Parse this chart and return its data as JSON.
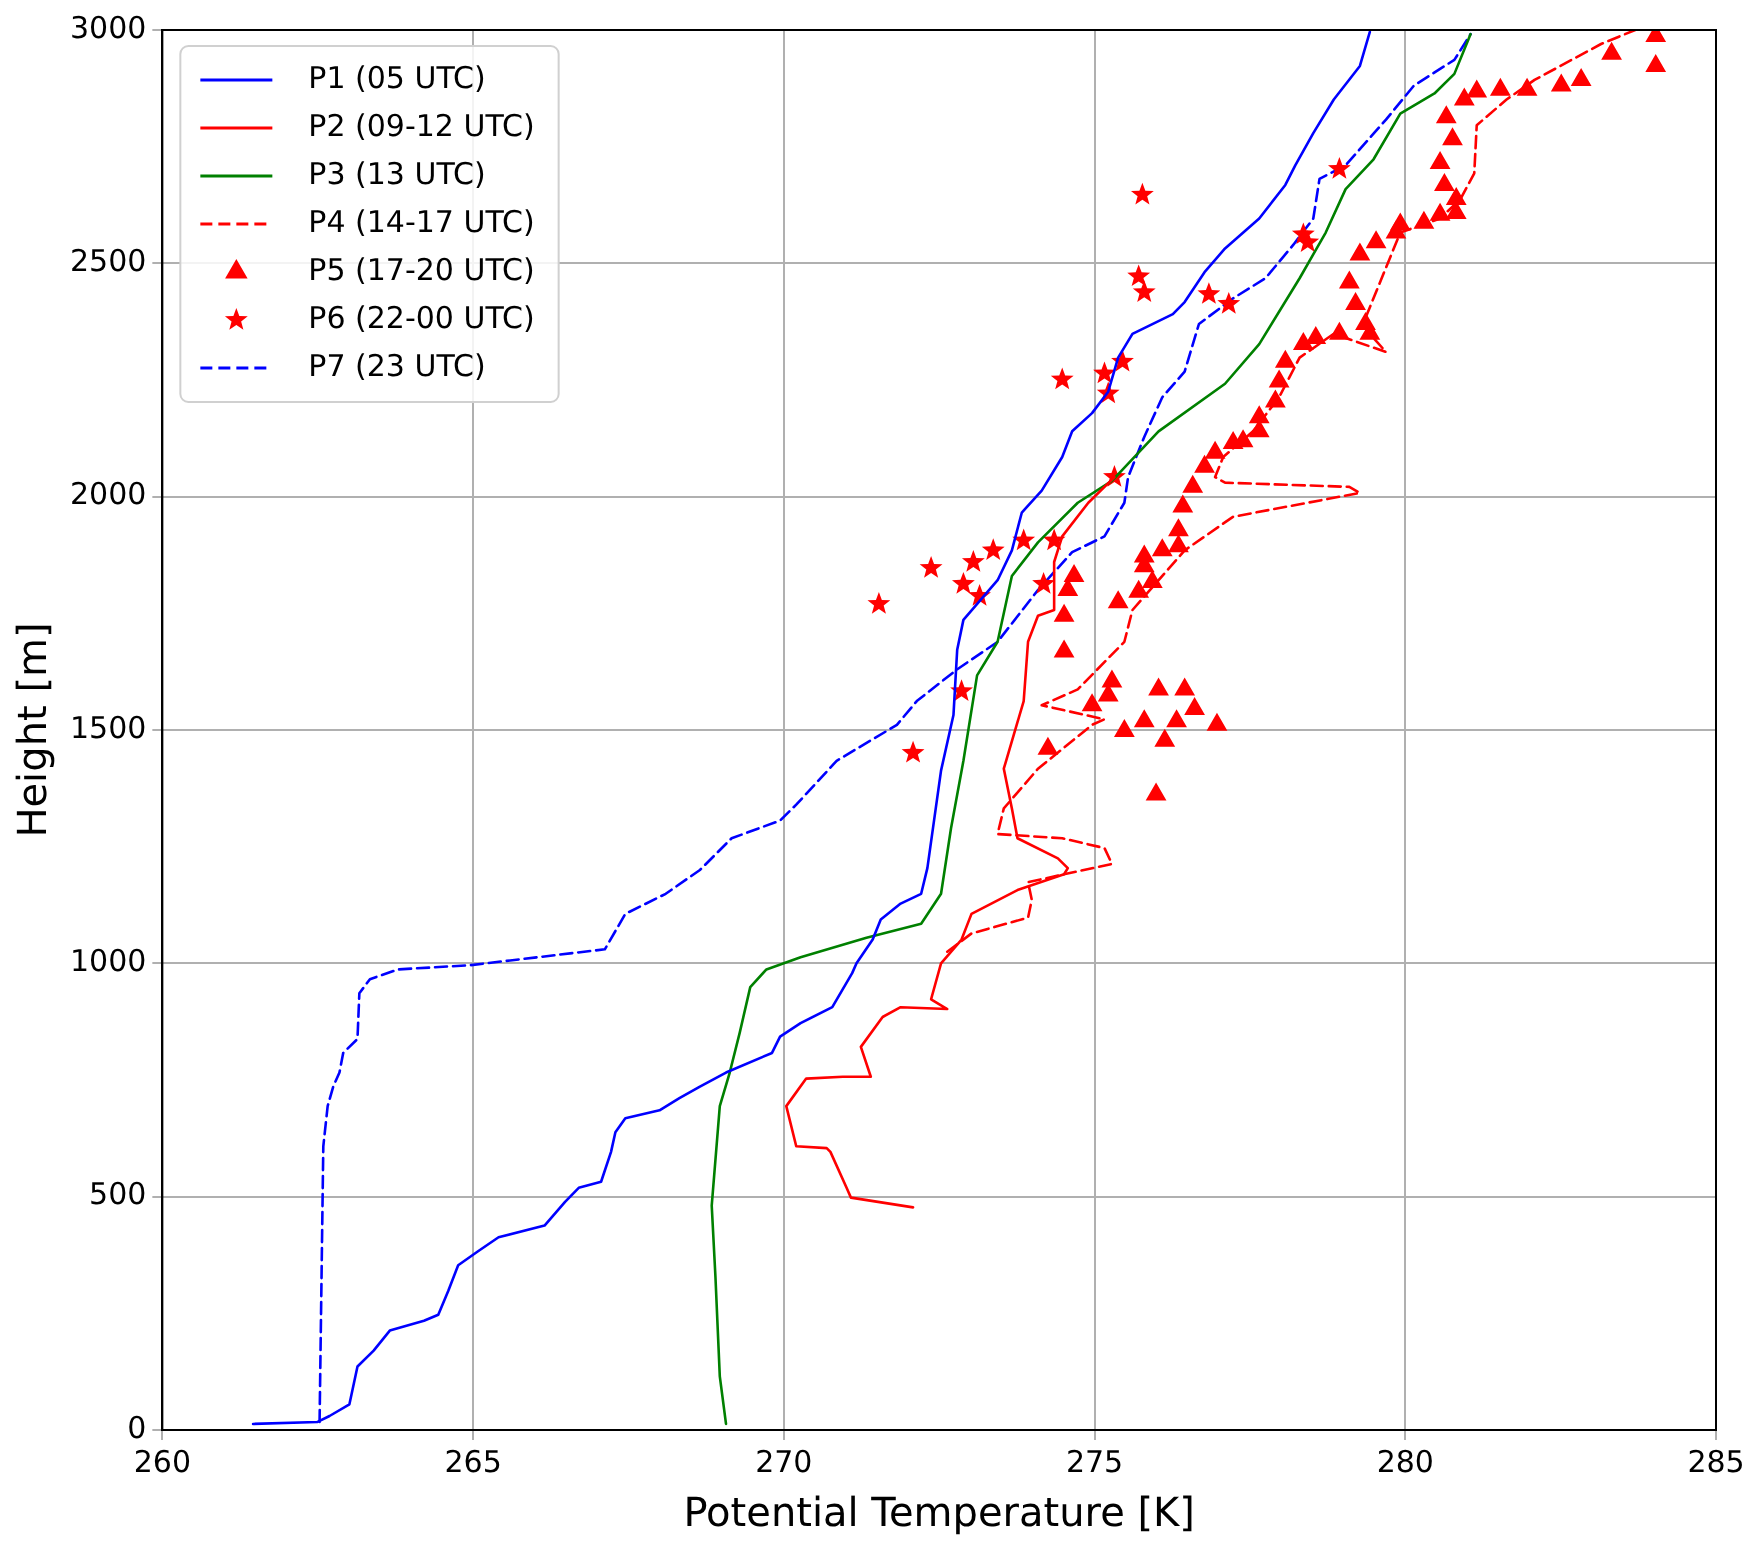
{
  "chart_data": {
    "type": "line",
    "xlabel": "Potential Temperature [K]",
    "ylabel": "Height [m]",
    "xlim": [
      260,
      285
    ],
    "xticks": [
      260,
      265,
      270,
      275,
      280,
      285
    ],
    "ylim": [
      0,
      3000
    ],
    "yticks": [
      0,
      500,
      1000,
      1500,
      2000,
      2500,
      3000
    ],
    "grid": true,
    "legend": "top left",
    "series": [
      {
        "name": "P1 (05 UTC)",
        "type": "line",
        "color": "#0000ff",
        "line_style": "solid",
        "marker": "none",
        "x": [
          261.46,
          262.49,
          262.69,
          263.01,
          263.14,
          263.4,
          263.66,
          264.21,
          264.44,
          264.6,
          264.76,
          265.08,
          265.41,
          266.15,
          266.48,
          266.7,
          267.06,
          267.22,
          267.29,
          267.45,
          268.0,
          268.32,
          268.65,
          269.07,
          269.81,
          269.94,
          270.27,
          270.78,
          271.1,
          271.17,
          271.43,
          271.56,
          271.88,
          272.21,
          272.31,
          272.53,
          272.73,
          272.79,
          272.89,
          273.44,
          273.67,
          273.83,
          274.15,
          274.48,
          274.64,
          274.96,
          275.22,
          275.38,
          275.61,
          276.26,
          276.45,
          276.77,
          277.1,
          277.65,
          278.07,
          278.23,
          278.52,
          278.85,
          279.27,
          279.43
        ],
        "values": [
          13,
          17,
          30,
          55,
          136,
          170,
          213,
          234,
          247,
          298,
          353,
          383,
          413,
          438,
          489,
          519,
          532,
          596,
          638,
          668,
          685,
          711,
          736,
          766,
          808,
          843,
          872,
          906,
          979,
          1000,
          1051,
          1094,
          1128,
          1149,
          1204,
          1413,
          1532,
          1672,
          1736,
          1821,
          1885,
          1966,
          2013,
          2085,
          2140,
          2179,
          2225,
          2298,
          2349,
          2391,
          2417,
          2481,
          2532,
          2596,
          2668,
          2710,
          2779,
          2851,
          2923,
          2996
        ]
      },
      {
        "name": "P2 (09-12 UTC)",
        "type": "line",
        "color": "#ff0000",
        "line_style": "solid",
        "marker": "none",
        "x": [
          272.08,
          271.08,
          271.01,
          270.75,
          270.69,
          270.2,
          270.04,
          270.36,
          270.95,
          271.4,
          271.24,
          271.59,
          271.88,
          272.63,
          272.37,
          272.53,
          272.86,
          273.02,
          273.76,
          274.51,
          274.57,
          274.41,
          273.76,
          273.67,
          273.54,
          273.86,
          273.93,
          274.09,
          274.35,
          274.35,
          274.48,
          274.9,
          275.32
        ],
        "values": [
          477,
          498,
          519,
          596,
          604,
          608,
          694,
          753,
          757,
          757,
          821,
          885,
          906,
          902,
          923,
          1000,
          1051,
          1106,
          1157,
          1191,
          1204,
          1225,
          1268,
          1332,
          1417,
          1562,
          1689,
          1745,
          1757,
          1860,
          1915,
          1987,
          2042
        ]
      },
      {
        "name": "P3 (13 UTC)",
        "type": "line",
        "color": "#008000",
        "line_style": "solid",
        "marker": "none",
        "x": [
          269.07,
          268.97,
          268.9,
          268.84,
          268.97,
          269.13,
          269.29,
          269.46,
          269.72,
          270.27,
          271.33,
          272.21,
          272.53,
          272.69,
          272.89,
          273.11,
          273.44,
          273.67,
          274.09,
          274.73,
          275.28,
          276.03,
          277.1,
          277.65,
          278.3,
          278.72,
          279.04,
          279.49,
          279.92,
          280.47,
          280.79,
          281.05
        ],
        "values": [
          13,
          115,
          328,
          481,
          694,
          766,
          851,
          949,
          987,
          1013,
          1055,
          1085,
          1149,
          1289,
          1434,
          1617,
          1689,
          1830,
          1902,
          1987,
          2034,
          2140,
          2242,
          2327,
          2468,
          2566,
          2659,
          2723,
          2821,
          2864,
          2906,
          2991
        ]
      },
      {
        "name": "P4 (14-17 UTC)",
        "type": "line",
        "color": "#ff0000",
        "line_style": "dashed",
        "marker": "none",
        "x": [
          272.63,
          273.02,
          273.93,
          273.99,
          273.93,
          275.28,
          275.16,
          274.48,
          273.44,
          273.54,
          274.09,
          274.96,
          275.16,
          274.15,
          274.73,
          275.48,
          275.61,
          276.45,
          277.23,
          279.27,
          279.1,
          277.1,
          276.94,
          277.07,
          277.55,
          277.97,
          278.3,
          278.85,
          279.69,
          279.49,
          279.36,
          279.92,
          280.56,
          280.89,
          281.11,
          281.15,
          281.63,
          282.08,
          283.15,
          283.7
        ],
        "values": [
          1025,
          1064,
          1098,
          1136,
          1174,
          1213,
          1247,
          1268,
          1277,
          1332,
          1417,
          1511,
          1523,
          1553,
          1587,
          1689,
          1757,
          1885,
          1957,
          2008,
          2021,
          2030,
          2042,
          2085,
          2140,
          2213,
          2298,
          2349,
          2310,
          2340,
          2383,
          2566,
          2596,
          2638,
          2693,
          2796,
          2851,
          2893,
          2970,
          3000
        ]
      },
      {
        "name": "P5 (17-20 UTC)",
        "type": "scatter",
        "color": "#ff0000",
        "marker": "triangle",
        "x": [
          284.03,
          284.03,
          283.32,
          282.83,
          282.51,
          281.96,
          281.53,
          281.15,
          280.95,
          280.66,
          280.76,
          280.56,
          280.63,
          280.82,
          280.82,
          280.56,
          280.3,
          279.92,
          279.85,
          279.53,
          279.27,
          279.1,
          279.2,
          279.36,
          279.43,
          278.94,
          278.56,
          278.36,
          278.07,
          277.97,
          277.91,
          277.65,
          277.65,
          277.39,
          277.23,
          276.94,
          276.77,
          276.58,
          276.42,
          276.35,
          276.35,
          276.09,
          275.8,
          275.8,
          275.93,
          275.71,
          275.38,
          274.67,
          274.57,
          274.51,
          274.51,
          275.28,
          275.22,
          274.96,
          276.03,
          276.45,
          276.61,
          275.8,
          275.48,
          276.13,
          276.32,
          276.97,
          274.25,
          275.99
        ],
        "values": [
          2987,
          2923,
          2949,
          2893,
          2881,
          2872,
          2872,
          2868,
          2851,
          2813,
          2766,
          2715,
          2668,
          2638,
          2608,
          2604,
          2587,
          2583,
          2566,
          2545,
          2519,
          2459,
          2413,
          2370,
          2349,
          2349,
          2340,
          2327,
          2289,
          2247,
          2204,
          2170,
          2140,
          2119,
          2115,
          2094,
          2064,
          2021,
          1979,
          1928,
          1894,
          1885,
          1872,
          1851,
          1817,
          1796,
          1774,
          1830,
          1800,
          1745,
          1668,
          1604,
          1574,
          1553,
          1587,
          1587,
          1545,
          1519,
          1498,
          1477,
          1519,
          1511,
          1460,
          1362
        ]
      },
      {
        "name": "P6 (22-00 UTC)",
        "type": "scatter",
        "color": "#ff0000",
        "marker": "star",
        "x": [
          275.77,
          278.94,
          278.36,
          278.43,
          275.71,
          275.8,
          276.84,
          277.16,
          275.45,
          275.16,
          274.48,
          275.22,
          275.32,
          274.35,
          273.86,
          273.37,
          273.05,
          272.37,
          272.89,
          273.15,
          271.53,
          274.18,
          272.86,
          272.08
        ],
        "values": [
          2647,
          2702,
          2562,
          2545,
          2472,
          2438,
          2434,
          2413,
          2289,
          2264,
          2251,
          2221,
          2042,
          1906,
          1906,
          1885,
          1860,
          1847,
          1813,
          1787,
          1770,
          1813,
          1583,
          1451
        ]
      },
      {
        "name": "P7 (23 UTC)",
        "type": "line",
        "color": "#0000ff",
        "line_style": "dashed",
        "marker": "none",
        "x": [
          262.53,
          262.59,
          262.66,
          262.75,
          262.85,
          262.91,
          263.14,
          263.17,
          263.34,
          263.79,
          264.95,
          267.12,
          267.45,
          268.1,
          268.65,
          269.16,
          269.94,
          270.2,
          270.85,
          271.82,
          272.14,
          272.79,
          273.44,
          274.09,
          274.64,
          275.16,
          275.48,
          275.54,
          275.8,
          276.09,
          276.45,
          276.68,
          277.23,
          277.75,
          278.2,
          278.52,
          278.62,
          279.04,
          279.69,
          280.14,
          280.79,
          281.05
        ],
        "values": [
          17,
          608,
          694,
          736,
          766,
          808,
          838,
          936,
          966,
          987,
          996,
          1030,
          1106,
          1149,
          1200,
          1268,
          1306,
          1340,
          1434,
          1511,
          1562,
          1630,
          1689,
          1800,
          1881,
          1915,
          1987,
          2042,
          2128,
          2213,
          2268,
          2370,
          2425,
          2468,
          2540,
          2596,
          2681,
          2710,
          2808,
          2881,
          2936,
          2991
        ]
      }
    ]
  }
}
